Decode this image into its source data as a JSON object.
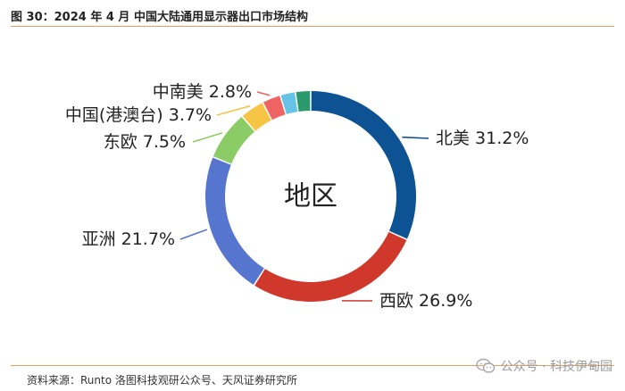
{
  "header": {
    "title": "图 30：2024 年 4 月 中国大陆通用显示器出口市场结构"
  },
  "chart_data": {
    "type": "pie",
    "center_label": "地区",
    "slices": [
      {
        "label": "北美 31.2%",
        "value": 31.2,
        "color": "#0d5292"
      },
      {
        "label": "西欧 26.9%",
        "value": 26.9,
        "color": "#d0382b"
      },
      {
        "label": "亚洲 21.7%",
        "value": 21.7,
        "color": "#5675cf"
      },
      {
        "label": "东欧 7.5%",
        "value": 7.5,
        "color": "#8ccc66"
      },
      {
        "label": "中国(港澳台) 3.7%",
        "value": 3.7,
        "color": "#f7c546"
      },
      {
        "label": "中南美 2.8%",
        "value": 2.8,
        "color": "#ee6462"
      },
      {
        "label": "",
        "value": 2.3,
        "color": "#66c3e6"
      },
      {
        "label": "",
        "value": 2.3,
        "color": "#2a9a6c"
      }
    ]
  },
  "footer": {
    "source": "资料来源：Runto 洛图科技观研公众号、天风证券研究所",
    "watermark": "公众号 · 科技伊甸园",
    "watermark_icon": "wechat-icon"
  }
}
